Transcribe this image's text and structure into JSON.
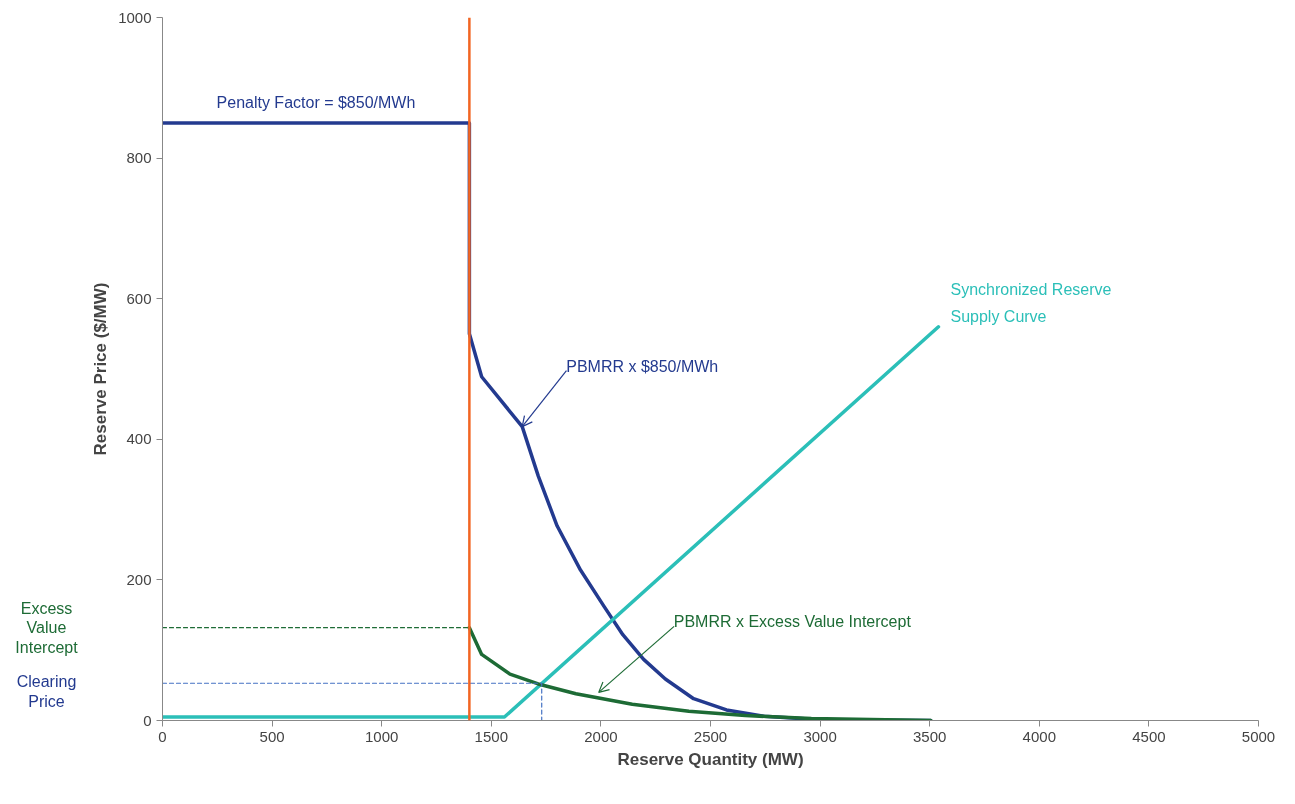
{
  "chart_data": {
    "type": "line",
    "xlabel": "Reserve Quantity (MW)",
    "ylabel": "Reserve Price ($/MW)",
    "xlim": [
      0,
      5000
    ],
    "ylim": [
      0,
      1000
    ],
    "xticks": [
      0,
      500,
      1000,
      1500,
      2000,
      2500,
      3000,
      3500,
      4000,
      4500,
      5000
    ],
    "yticks": [
      0,
      200,
      400,
      600,
      800,
      1000
    ],
    "grid": false,
    "marker": "none",
    "series": [
      {
        "color": "#233a8f",
        "line_style": "solid",
        "x": [
          0,
          1400,
          1400,
          1456,
          1641,
          1714,
          1800,
          1907,
          2015,
          2100,
          2195,
          2294,
          2423,
          2573,
          2745,
          3003,
          3505
        ],
        "values": [
          850,
          850,
          550,
          489,
          418,
          348,
          277,
          214,
          162,
          122,
          87,
          59,
          31,
          15,
          6,
          1,
          0
        ]
      },
      {
        "color": "#2bbfb8",
        "line_style": "solid",
        "x": [
          0,
          1560,
          3540
        ],
        "values": [
          5,
          5,
          560
        ]
      },
      {
        "color": "#1d6b35",
        "line_style": "solid",
        "x": [
          1400,
          1456,
          1585,
          1714,
          1886,
          2143,
          2401,
          2659,
          2960,
          3505
        ],
        "values": [
          132,
          94,
          66,
          52,
          38,
          23,
          13,
          7,
          3,
          0
        ]
      },
      {
        "color": "#1d6b35",
        "line_style": "dashed",
        "x": [
          0,
          1400
        ],
        "values": [
          132,
          132
        ]
      },
      {
        "color": "#4472c4",
        "line_style": "dashed",
        "x": [
          0,
          1730,
          1730
        ],
        "values": [
          53,
          53,
          0
        ]
      }
    ],
    "ref_lines": [
      {
        "axis": "x",
        "value": 1400,
        "color": "#f26522"
      }
    ],
    "annotations": [
      {
        "text": "Penalty Factor = $850/MWh",
        "x": 700,
        "y": 850
      },
      {
        "text": "PBMRR x $850/MWh",
        "x": 1641,
        "y": 418
      },
      {
        "text": "Synchronized Reserve\nSupply Curve",
        "x": 3540,
        "y": 560
      },
      {
        "text": "PBMRR x Excess Value Intercept",
        "x": 1990,
        "y": 40
      },
      "Excess\nValue\nIntercept",
      "Clearing\nPrice"
    ]
  }
}
